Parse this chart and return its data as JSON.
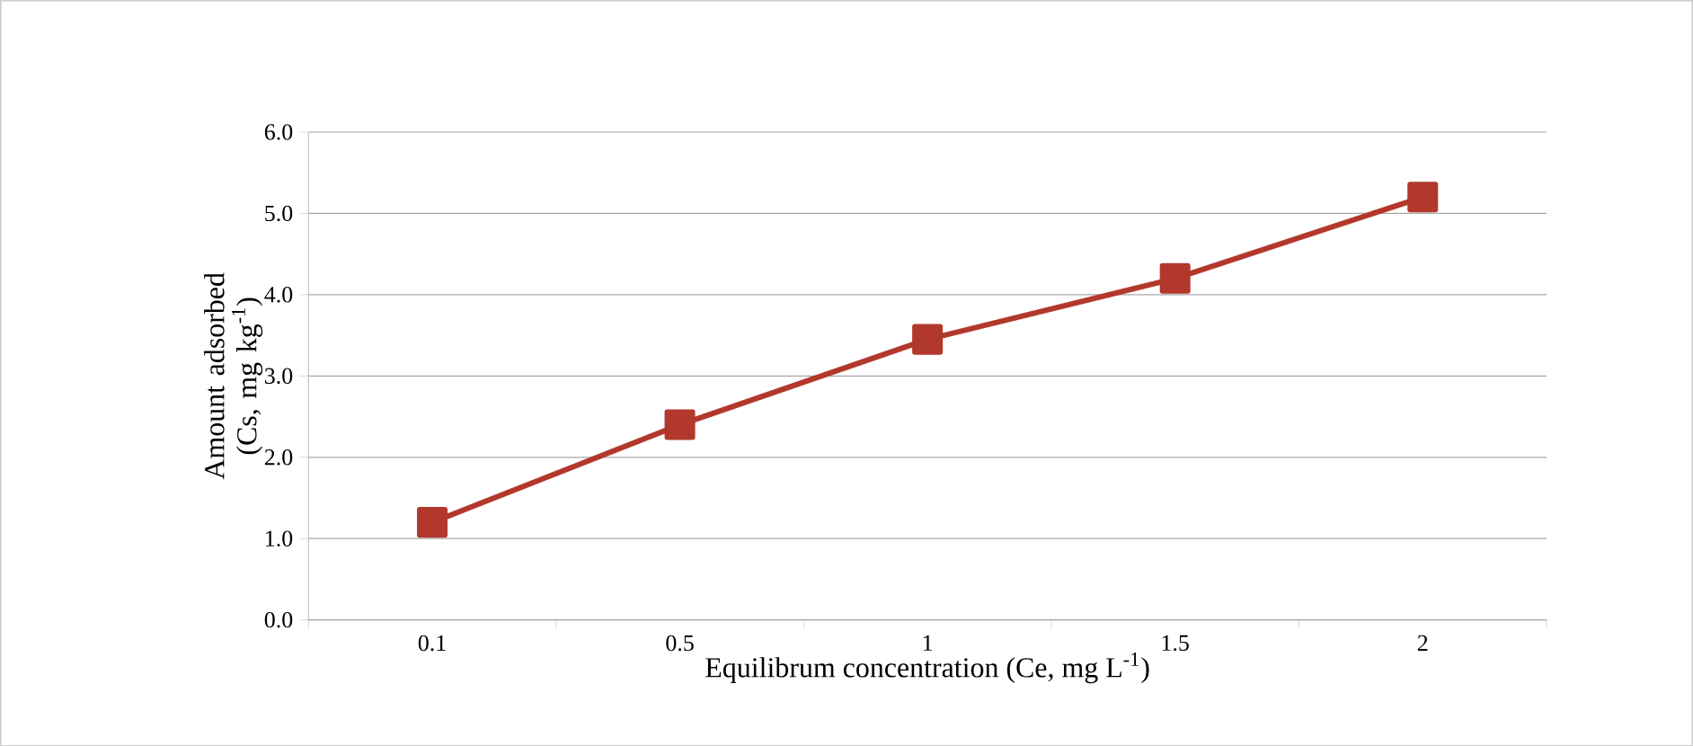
{
  "chart_data": {
    "type": "line",
    "xlabel": "Equilibrum concentration (Ce, mg L$^{-1}$)",
    "ylabel": "Amount adsorbed (Cs, mg kg$^{-1}$)",
    "categories": [
      "0.1",
      "0.5",
      "1",
      "1.5",
      "2"
    ],
    "series": [
      {
        "color": "#b3382c",
        "values": [
          1.2,
          2.4,
          3.45,
          4.2,
          5.2
        ]
      }
    ],
    "ylim": [
      0,
      6
    ],
    "yticks": [
      {
        "value": 0,
        "label": "0.0"
      },
      {
        "value": 1,
        "label": "1.0"
      },
      {
        "value": 2,
        "label": "2.0"
      },
      {
        "value": 3,
        "label": "3.0"
      },
      {
        "value": 4,
        "label": "4.0"
      },
      {
        "value": 5,
        "label": "5.0"
      },
      {
        "value": 6,
        "label": "6.0"
      }
    ],
    "grid": "y",
    "marker": "square",
    "line_style": "solid"
  }
}
